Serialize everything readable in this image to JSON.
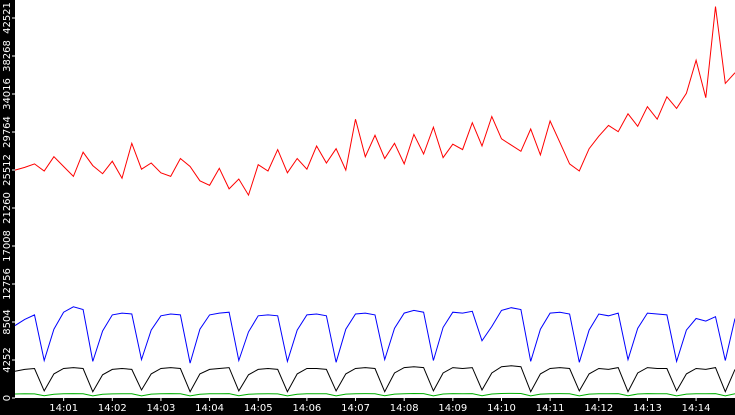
{
  "chart_data": {
    "type": "line",
    "x": [
      0,
      0.2,
      0.4,
      0.6,
      0.8,
      1,
      1.2,
      1.4,
      1.6,
      1.8,
      2,
      2.2,
      2.4,
      2.6,
      2.8,
      3,
      3.2,
      3.4,
      3.6,
      3.8,
      4,
      4.2,
      4.4,
      4.6,
      4.8,
      5,
      5.2,
      5.4,
      5.6,
      5.8,
      6,
      6.2,
      6.4,
      6.6,
      6.8,
      7,
      7.2,
      7.4,
      7.6,
      7.8,
      8,
      8.2,
      8.4,
      8.6,
      8.8,
      9,
      9.2,
      9.4,
      9.6,
      9.8,
      10,
      10.2,
      10.4,
      10.6,
      10.8,
      11,
      11.2,
      11.4,
      11.6,
      11.8,
      12,
      12.2,
      12.4,
      12.6,
      12.8,
      13,
      13.2,
      13.4,
      13.6,
      13.8,
      14,
      14.2,
      14.4,
      14.6,
      14.8
    ],
    "series": [
      {
        "color": "#ff0000",
        "values": [
          25500,
          25800,
          26200,
          25400,
          27000,
          25900,
          24800,
          27500,
          26000,
          25100,
          26500,
          24600,
          28500,
          25600,
          26300,
          25200,
          24800,
          26800,
          25900,
          24300,
          23800,
          25700,
          23400,
          24500,
          22700,
          26100,
          25400,
          27800,
          25200,
          26800,
          25600,
          28200,
          26300,
          27900,
          25500,
          31200,
          27000,
          29400,
          26800,
          28500,
          26200,
          29500,
          27300,
          30300,
          26900,
          28400,
          27800,
          30800,
          28200,
          31500,
          29000,
          28300,
          27600,
          30100,
          27200,
          31000,
          28600,
          26200,
          25400,
          27900,
          29300,
          30500,
          29800,
          31800,
          30400,
          32600,
          31200,
          33700,
          32400,
          34100,
          37800,
          33600,
          43800,
          35200,
          36400
        ]
      },
      {
        "color": "#0000ff",
        "values": [
          8100,
          8800,
          9300,
          4200,
          7700,
          9600,
          10200,
          9900,
          4100,
          7500,
          9300,
          9500,
          9400,
          4300,
          7600,
          9200,
          9400,
          9300,
          3900,
          7700,
          9300,
          9500,
          9600,
          4200,
          7400,
          9200,
          9300,
          9200,
          4100,
          7600,
          9300,
          9400,
          9200,
          4000,
          7700,
          9400,
          9500,
          9300,
          4300,
          7800,
          9500,
          9800,
          9600,
          4200,
          7900,
          9600,
          9500,
          9700,
          6400,
          8000,
          9800,
          10100,
          9900,
          4100,
          7700,
          9500,
          9600,
          9400,
          4000,
          7600,
          9400,
          9200,
          9500,
          4300,
          7800,
          9500,
          9400,
          9300,
          4100,
          7600,
          8900,
          8600,
          9100,
          4200,
          8900
        ]
      },
      {
        "color": "#000000",
        "values": [
          3000,
          3200,
          3300,
          800,
          2700,
          3300,
          3400,
          3300,
          700,
          2600,
          3200,
          3300,
          3200,
          900,
          2700,
          3300,
          3400,
          3300,
          700,
          2700,
          3200,
          3300,
          3400,
          800,
          2600,
          3200,
          3300,
          3200,
          700,
          2700,
          3300,
          3300,
          3200,
          800,
          2700,
          3300,
          3400,
          3300,
          700,
          2800,
          3400,
          3500,
          3400,
          800,
          2800,
          3400,
          3300,
          3400,
          900,
          2800,
          3500,
          3600,
          3500,
          700,
          2700,
          3300,
          3400,
          3300,
          800,
          2700,
          3300,
          3200,
          3400,
          700,
          2800,
          3400,
          3300,
          3300,
          800,
          2700,
          3300,
          3200,
          3400,
          700,
          3200
        ]
      },
      {
        "color": "#00b000",
        "values": [
          450,
          480,
          460,
          250,
          420,
          470,
          490,
          480,
          230,
          430,
          460,
          480,
          470,
          240,
          440,
          470,
          490,
          480,
          230,
          430,
          470,
          480,
          490,
          250,
          420,
          460,
          470,
          460,
          240,
          430,
          470,
          480,
          470,
          230,
          440,
          480,
          490,
          480,
          250,
          440,
          480,
          500,
          490,
          240,
          450,
          490,
          480,
          490,
          260,
          450,
          500,
          510,
          500,
          240,
          440,
          480,
          490,
          480,
          230,
          440,
          480,
          470,
          490,
          250,
          450,
          490,
          480,
          480,
          240,
          440,
          480,
          470,
          490,
          230,
          470
        ]
      }
    ],
    "xlim": [
      0,
      14.8
    ],
    "xticks": [
      {
        "value": 1,
        "label": "14:01"
      },
      {
        "value": 2,
        "label": "14:02"
      },
      {
        "value": 3,
        "label": "14:03"
      },
      {
        "value": 4,
        "label": "14:04"
      },
      {
        "value": 5,
        "label": "14:05"
      },
      {
        "value": 6,
        "label": "14:06"
      },
      {
        "value": 7,
        "label": "14:07"
      },
      {
        "value": 8,
        "label": "14:08"
      },
      {
        "value": 9,
        "label": "14:09"
      },
      {
        "value": 10,
        "label": "14:10"
      },
      {
        "value": 11,
        "label": "14:11"
      },
      {
        "value": 12,
        "label": "14:12"
      },
      {
        "value": 13,
        "label": "14:13"
      },
      {
        "value": 14,
        "label": "14:14"
      }
    ],
    "ylim": [
      0,
      44535
    ],
    "yticks": [
      0,
      4252,
      8504,
      12756,
      17008,
      21260,
      25512,
      29764,
      34016,
      38268,
      42521
    ]
  }
}
